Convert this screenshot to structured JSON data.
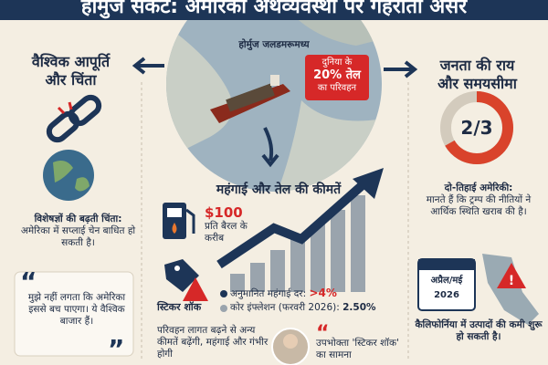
{
  "header": {
    "title": "होर्मुज संकट: अमेरिकी अर्थव्यवस्था पर गहराता असर"
  },
  "map": {
    "label": "होर्मुज जलडमरूमध्य",
    "callout": [
      "दुनिया के",
      "20% तेल",
      "का परिवहन"
    ]
  },
  "left": {
    "heading": [
      "वैश्विक आपूर्ति",
      "और चिंता"
    ],
    "concern_title": "विशेषज्ञों की बढ़ती चिंता:",
    "concern_text": "अमेरिका में सप्लाई चेन बाधित हो सकती है।",
    "quote": "मुझे नहीं लगता कि अमेरिका इससे बच पाएगा। ये वैश्विक बाजार हैं।"
  },
  "right": {
    "heading": [
      "जनता की राय",
      "और समयसीमा"
    ],
    "fraction": "2/3",
    "opinion_title": "दो-तिहाई अमेरिकी:",
    "opinion_text": "मानते हैं कि ट्रम्प की नीतियों ने आर्थिक स्थिति खराब की है।",
    "calendar": [
      "अप्रैल/मई",
      "2026"
    ],
    "shortage_text": "कैलिफोर्निया में उत्पादों की कमी शुरू हो सकती है।"
  },
  "center": {
    "heading": "महंगाई और तेल की कीमतें",
    "oil_price": "$100",
    "oil_price_note": "प्रति बैरल के करीब",
    "sticker_label": "स्टिकर शॉक",
    "bullets": [
      {
        "label": "अनुमानित महंगाई दर:",
        "value": ">4%"
      },
      {
        "label": "कोर इंफ्लेशन (फरवरी 2026):",
        "value": "2.50%"
      }
    ],
    "transport_text": "परिवहन लागत बढ़ने से अन्य कीमतें बढ़ेंगी, महंगाई और गंभीर होगी",
    "consumer_text": "उपभोक्ता 'स्टिकर शॉक' का सामना"
  }
}
